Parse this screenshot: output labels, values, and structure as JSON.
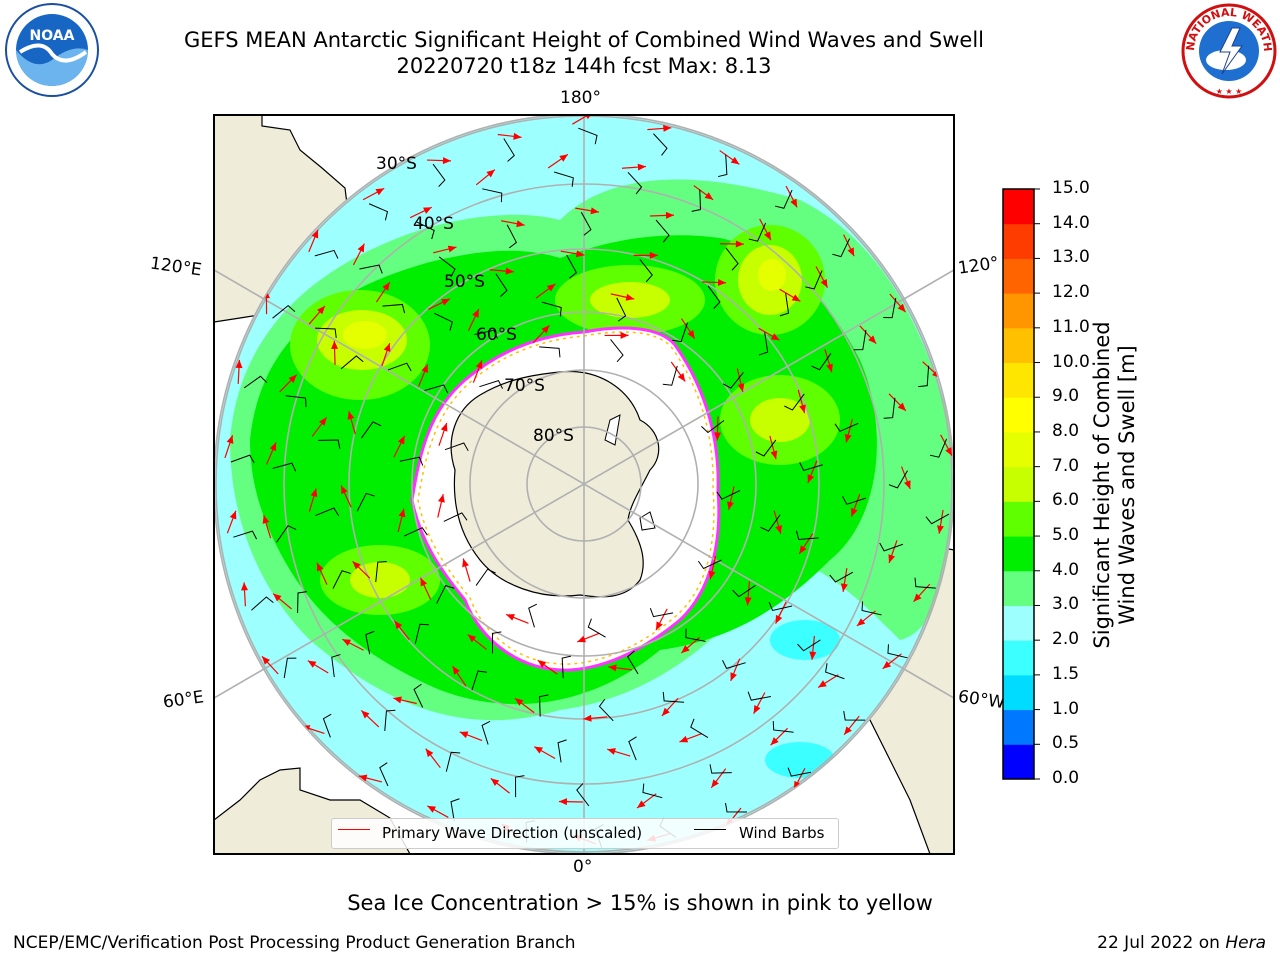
{
  "header": {
    "title_line1": "GEFS MEAN Antarctic Significant Height of Combined Wind Waves and Swell",
    "title_line2": "20220720 t18z 144h fcst   Max: 8.13"
  },
  "logos": {
    "left": "noaa-logo",
    "right": "national-weather-service-logo",
    "left_text": "NOAA",
    "right_text": "NATIONAL WEATHER SERVICE"
  },
  "map": {
    "projection": "south-polar-stereographic",
    "lon_labels": {
      "top": "180°",
      "bottom": "0°",
      "left_upper": "120°E",
      "left_lower": "60°E",
      "right_upper": "120°",
      "right_lower": "60°W"
    },
    "lat_labels": [
      "30°S",
      "40°S",
      "50°S",
      "60°S",
      "70°S",
      "80°S"
    ],
    "colors": {
      "land": "#efecda",
      "ice_edge_pink": "#ff33ff",
      "ice_edge_yellow": "#ffc000",
      "wave_arrow": "#ff0000",
      "wind_barb": "#000000",
      "grid": "#b0b0b0"
    }
  },
  "legend": {
    "items": [
      {
        "label": "Primary Wave Direction (unscaled)",
        "color": "#ff0000"
      },
      {
        "label": "Wind Barbs",
        "color": "#000000"
      }
    ]
  },
  "colorbar": {
    "label_line1": "Significant Height of Combined",
    "label_line2": "Wind Waves and Swell [m]",
    "levels": [
      "0.0",
      "0.5",
      "1.0",
      "1.5",
      "2.0",
      "3.0",
      "4.0",
      "5.0",
      "6.0",
      "7.0",
      "8.0",
      "9.0",
      "10.0",
      "11.0",
      "12.0",
      "13.0",
      "14.0",
      "15.0"
    ],
    "colors": [
      "#0000ff",
      "#0078ff",
      "#00dcff",
      "#3cffff",
      "#9effff",
      "#64ff80",
      "#00ef00",
      "#5fff00",
      "#c8ff00",
      "#e6ff00",
      "#ffff00",
      "#ffe600",
      "#ffc000",
      "#ff9600",
      "#ff6400",
      "#ff3c00",
      "#ff0000"
    ]
  },
  "caption": "Sea Ice Concentration > 15% is shown in pink to yellow",
  "footer": {
    "left": "NCEP/EMC/Verification Post Processing Product Generation Branch",
    "right_date": "22 Jul 2022 on ",
    "right_machine": "Hera"
  }
}
